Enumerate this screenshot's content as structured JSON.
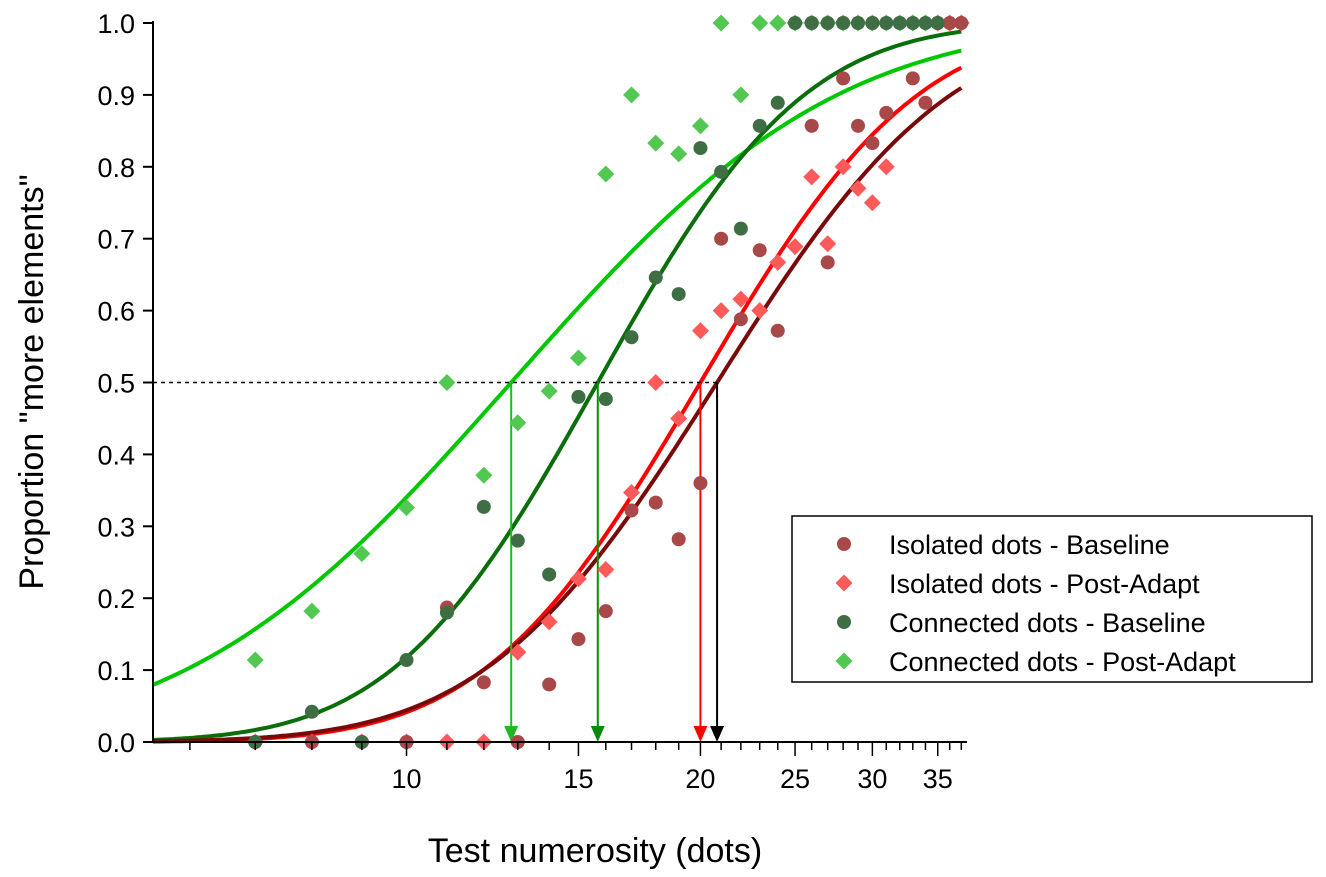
{
  "chart_data": {
    "type": "scatter",
    "title": "",
    "xlabel": "Test numerosity (dots)",
    "ylabel": "Proportion \"more elements\"",
    "xscale": "log",
    "xlim": [
      5.5,
      37.5
    ],
    "ylim": [
      0,
      1.0
    ],
    "x_tick_labels": [
      10,
      15,
      20,
      25,
      30,
      35
    ],
    "y_tick_labels": [
      "0.0",
      "0.1",
      "0.2",
      "0.3",
      "0.4",
      "0.5",
      "0.6",
      "0.7",
      "0.8",
      "0.9",
      "1.0"
    ],
    "criterion_line": 0.5,
    "legend_position": "lower-right",
    "series": [
      {
        "name": "Isolated dots - Baseline",
        "marker": "circle",
        "color": "#a84848",
        "fit_color": "#7a0a0a",
        "pse": 20.8,
        "points": [
          [
            7,
            0.0
          ],
          [
            8,
            0.0
          ],
          [
            9,
            0.0
          ],
          [
            10,
            0.0
          ],
          [
            11,
            0.187
          ],
          [
            12,
            0.083
          ],
          [
            13,
            0.0
          ],
          [
            14,
            0.08
          ],
          [
            15,
            0.143
          ],
          [
            16,
            0.182
          ],
          [
            17,
            0.322
          ],
          [
            18,
            0.333
          ],
          [
            19,
            0.282
          ],
          [
            20,
            0.36
          ],
          [
            21,
            0.7
          ],
          [
            22,
            0.588
          ],
          [
            23,
            0.684
          ],
          [
            24,
            0.572
          ],
          [
            26,
            0.857
          ],
          [
            27,
            0.667
          ],
          [
            28,
            0.923
          ],
          [
            29,
            0.857
          ],
          [
            30,
            0.833
          ],
          [
            31,
            0.875
          ],
          [
            33,
            0.923
          ],
          [
            34,
            0.889
          ],
          [
            26,
            1.0
          ],
          [
            28,
            1.0
          ],
          [
            30,
            1.0
          ],
          [
            32,
            1.0
          ],
          [
            35,
            1.0
          ],
          [
            36,
            1.0
          ],
          [
            37,
            1.0
          ]
        ]
      },
      {
        "name": "Isolated dots - Post-Adapt",
        "marker": "diamond",
        "color": "#ff5a5a",
        "fit_color": "#ff0000",
        "pse": 20.0,
        "points": [
          [
            7,
            0.0
          ],
          [
            8,
            0.0
          ],
          [
            9,
            0.0
          ],
          [
            10,
            0.0
          ],
          [
            11,
            0.0
          ],
          [
            12,
            0.0
          ],
          [
            13,
            0.125
          ],
          [
            14,
            0.167
          ],
          [
            15,
            0.227
          ],
          [
            16,
            0.24
          ],
          [
            17,
            0.347
          ],
          [
            18,
            0.5
          ],
          [
            19,
            0.45
          ],
          [
            20,
            0.572
          ],
          [
            21,
            0.6
          ],
          [
            22,
            0.616
          ],
          [
            23,
            0.6
          ],
          [
            24,
            0.667
          ],
          [
            25,
            0.689
          ],
          [
            26,
            0.786
          ],
          [
            27,
            0.693
          ],
          [
            28,
            0.8
          ],
          [
            29,
            0.77
          ],
          [
            30,
            0.75
          ],
          [
            31,
            0.8
          ],
          [
            33,
            1.0
          ],
          [
            34,
            1.0
          ],
          [
            35,
            1.0
          ],
          [
            36,
            1.0
          ],
          [
            37,
            1.0
          ]
        ]
      },
      {
        "name": "Connected dots - Baseline",
        "marker": "circle",
        "color": "#3f6e45",
        "fit_color": "#0a6e0a",
        "pse": 15.7,
        "points": [
          [
            7,
            0.0
          ],
          [
            8,
            0.042
          ],
          [
            9,
            0.0
          ],
          [
            10,
            0.114
          ],
          [
            11,
            0.18
          ],
          [
            12,
            0.327
          ],
          [
            13,
            0.28
          ],
          [
            14,
            0.233
          ],
          [
            15,
            0.48
          ],
          [
            16,
            0.477
          ],
          [
            17,
            0.563
          ],
          [
            18,
            0.646
          ],
          [
            19,
            0.623
          ],
          [
            20,
            0.826
          ],
          [
            21,
            0.793
          ],
          [
            22,
            0.714
          ],
          [
            23,
            0.857
          ],
          [
            24,
            0.889
          ],
          [
            25,
            1.0
          ],
          [
            26,
            1.0
          ],
          [
            27,
            1.0
          ],
          [
            28,
            1.0
          ],
          [
            29,
            1.0
          ],
          [
            30,
            1.0
          ],
          [
            31,
            1.0
          ],
          [
            32,
            1.0
          ],
          [
            33,
            1.0
          ],
          [
            34,
            1.0
          ],
          [
            35,
            1.0
          ]
        ]
      },
      {
        "name": "Connected dots - Post-Adapt",
        "marker": "diamond",
        "color": "#52c852",
        "fit_color": "#00c800",
        "pse": 12.8,
        "points": [
          [
            7,
            0.114
          ],
          [
            8,
            0.182
          ],
          [
            9,
            0.262
          ],
          [
            10,
            0.326
          ],
          [
            11,
            0.5
          ],
          [
            12,
            0.371
          ],
          [
            13,
            0.444
          ],
          [
            14,
            0.488
          ],
          [
            15,
            0.534
          ],
          [
            16,
            0.79
          ],
          [
            17,
            0.9
          ],
          [
            18,
            0.833
          ],
          [
            19,
            0.818
          ],
          [
            20,
            0.857
          ],
          [
            21,
            1.0
          ],
          [
            22,
            0.9
          ],
          [
            23,
            1.0
          ],
          [
            24,
            1.0
          ],
          [
            25,
            1.0
          ],
          [
            26,
            1.0
          ],
          [
            27,
            1.0
          ],
          [
            28,
            1.0
          ],
          [
            29,
            1.0
          ],
          [
            30,
            1.0
          ],
          [
            31,
            1.0
          ],
          [
            32,
            1.0
          ],
          [
            33,
            1.0
          ],
          [
            34,
            1.0
          ]
        ]
      }
    ],
    "pse_arrow_colors": [
      "#000000",
      "#ff0000",
      "#0a8a0a",
      "#22b822"
    ]
  }
}
